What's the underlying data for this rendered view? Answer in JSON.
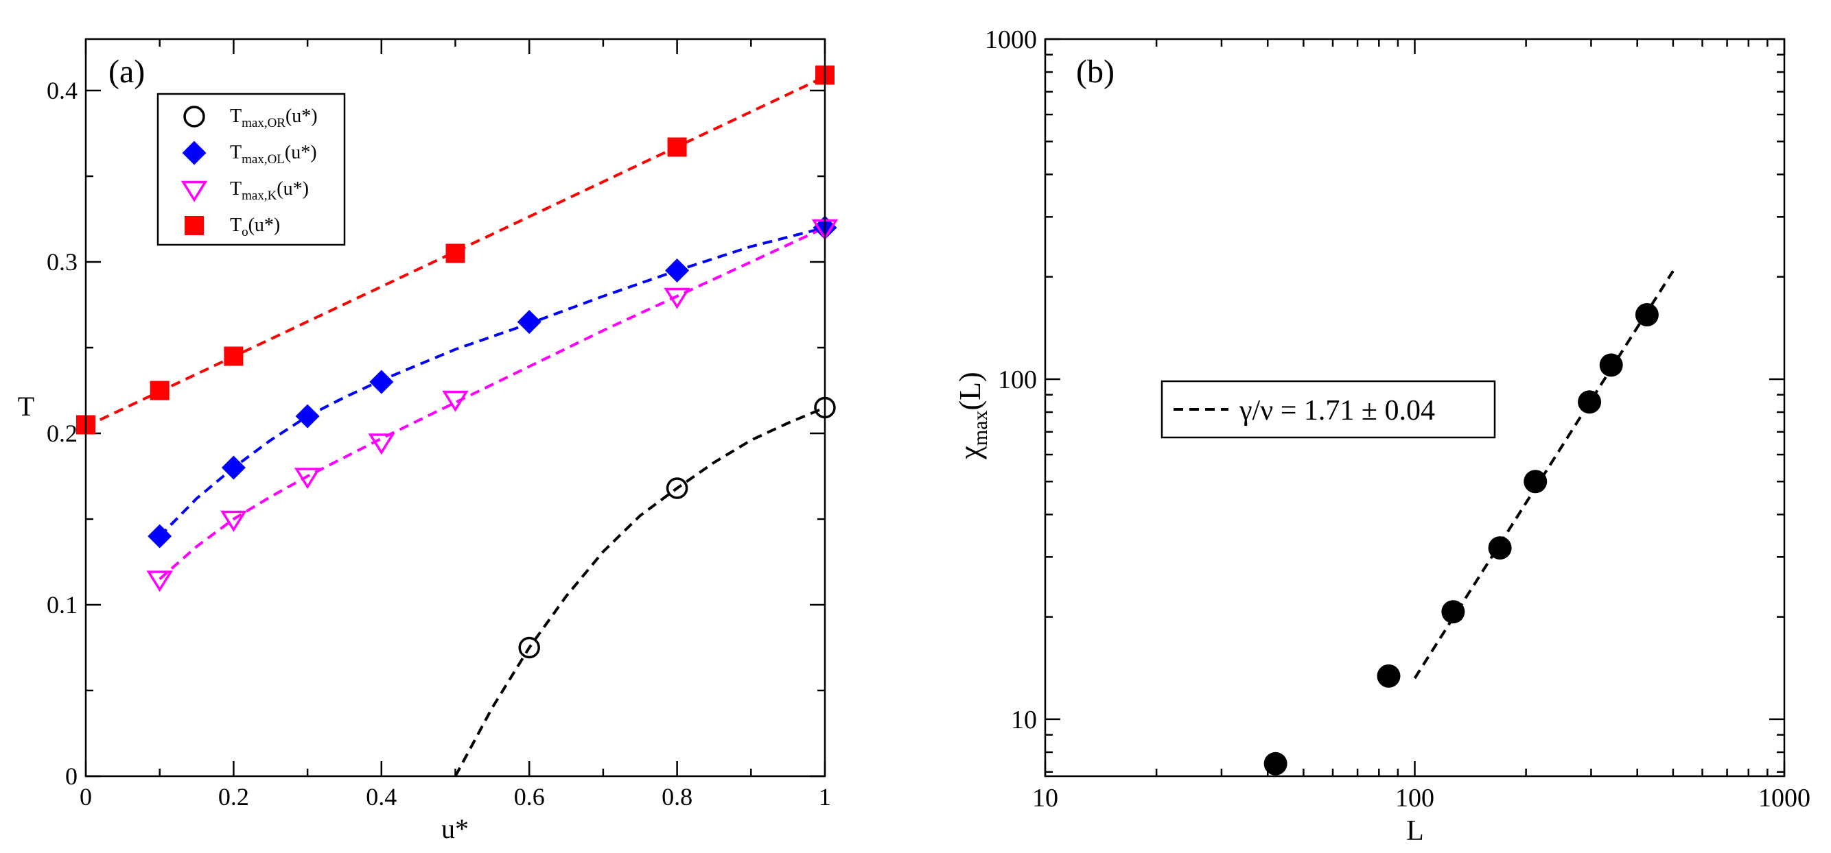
{
  "chart_data": [
    {
      "type": "scatter",
      "panel_label": "(a)",
      "xlabel": "u*",
      "ylabel": "T",
      "xlim": [
        0,
        1
      ],
      "ylim": [
        0,
        0.43
      ],
      "x_ticks": [
        0,
        0.2,
        0.4,
        0.6,
        0.8,
        1
      ],
      "x_tick_labels": [
        "0",
        "0.2",
        "0.4",
        "0.6",
        "0.8",
        "1"
      ],
      "y_ticks": [
        0,
        0.1,
        0.2,
        0.3,
        0.4
      ],
      "y_tick_labels": [
        "0",
        "0.1",
        "0.2",
        "0.3",
        "0.4"
      ],
      "legend_position": "top-left",
      "series": [
        {
          "name": "T_max,OR(u*)",
          "legend_main": "T",
          "legend_sub": "max,OR",
          "legend_tail": "(u*)",
          "marker": "circle-open",
          "color": "#000000",
          "x": [
            0.6,
            0.8,
            1.0
          ],
          "y": [
            0.075,
            0.168,
            0.215
          ],
          "fit_x": [
            0.5,
            0.55,
            0.6,
            0.65,
            0.7,
            0.75,
            0.8,
            0.85,
            0.9,
            0.95,
            1.0
          ],
          "fit_y": [
            0.0,
            0.04,
            0.075,
            0.105,
            0.131,
            0.152,
            0.168,
            0.183,
            0.196,
            0.206,
            0.215
          ]
        },
        {
          "name": "T_max,OL(u*)",
          "legend_main": "T",
          "legend_sub": "max,OL",
          "legend_tail": "(u*)",
          "marker": "diamond-filled",
          "color": "#0000ff",
          "x": [
            0.1,
            0.2,
            0.3,
            0.4,
            0.6,
            0.8,
            1.0
          ],
          "y": [
            0.14,
            0.18,
            0.21,
            0.23,
            0.265,
            0.295,
            0.32
          ],
          "fit_x": [
            0.1,
            0.15,
            0.2,
            0.25,
            0.3,
            0.35,
            0.4,
            0.5,
            0.6,
            0.7,
            0.8,
            0.9,
            1.0
          ],
          "fit_y": [
            0.14,
            0.162,
            0.18,
            0.196,
            0.21,
            0.221,
            0.231,
            0.249,
            0.264,
            0.28,
            0.295,
            0.309,
            0.32
          ]
        },
        {
          "name": "T_max,K(u*)",
          "legend_main": "T",
          "legend_sub": "max,K",
          "legend_tail": "(u*)",
          "marker": "triangle-down-open",
          "color": "#ff00ff",
          "x": [
            0.1,
            0.2,
            0.3,
            0.4,
            0.5,
            0.8,
            1.0
          ],
          "y": [
            0.115,
            0.15,
            0.175,
            0.195,
            0.22,
            0.28,
            0.32
          ],
          "fit_x": [
            0.1,
            0.15,
            0.2,
            0.25,
            0.3,
            0.35,
            0.4,
            0.5,
            0.6,
            0.7,
            0.8,
            0.9,
            1.0
          ],
          "fit_y": [
            0.115,
            0.134,
            0.15,
            0.163,
            0.175,
            0.186,
            0.197,
            0.218,
            0.239,
            0.26,
            0.28,
            0.3,
            0.32
          ]
        },
        {
          "name": "T_o(u*)",
          "legend_main": "T",
          "legend_sub": "o",
          "legend_tail": "(u*)",
          "marker": "square-filled",
          "color": "#ff0000",
          "x": [
            0.0,
            0.1,
            0.2,
            0.5,
            0.8,
            1.0
          ],
          "y": [
            0.205,
            0.225,
            0.245,
            0.305,
            0.367,
            0.409
          ],
          "fit_x": [
            0.0,
            1.0
          ],
          "fit_y": [
            0.204,
            0.408
          ]
        }
      ]
    },
    {
      "type": "scatter",
      "panel_label": "(b)",
      "xscale": "log",
      "yscale": "log",
      "xlabel": "L",
      "ylabel_main": "χ",
      "ylabel_sub": "max",
      "ylabel_tail": "(L)",
      "xlim": [
        10,
        1000
      ],
      "ylim": [
        6.8,
        1000
      ],
      "x_ticks": [
        10,
        100,
        1000
      ],
      "x_tick_labels": [
        "10",
        "100",
        "1000"
      ],
      "y_ticks": [
        10,
        100,
        1000
      ],
      "y_tick_labels": [
        "10",
        "100",
        "1000"
      ],
      "legend_position": "center-left",
      "legend_label": "γ/ν = 1.71 ± 0.04",
      "series": [
        {
          "name": "χ_max(L)",
          "marker": "circle-filled",
          "color": "#000000",
          "x": [
            42,
            85,
            127,
            170,
            212,
            297,
            340,
            425
          ],
          "y": [
            7.4,
            13.4,
            20.7,
            31.9,
            50.0,
            85.7,
            110.0,
            154.7
          ]
        },
        {
          "name": "fit",
          "style": "dashed",
          "color": "#000000",
          "x": [
            100,
            500
          ],
          "y": [
            13.2,
            208
          ]
        }
      ]
    }
  ]
}
